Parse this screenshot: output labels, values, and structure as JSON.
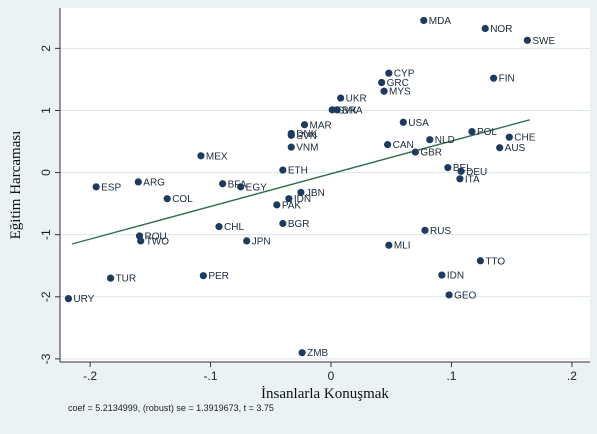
{
  "chart_data": {
    "type": "scatter",
    "xlabel": "İnsanlarla Konuşmak",
    "ylabel": "Eğitim Harcaması",
    "xlim": [
      -0.225,
      0.215
    ],
    "ylim": [
      -3.05,
      2.65
    ],
    "xticks": [
      {
        "value": -0.2,
        "label": "-.2"
      },
      {
        "value": -0.1,
        "label": "-.1"
      },
      {
        "value": 0,
        "label": "0"
      },
      {
        "value": 0.1,
        "label": ".1"
      },
      {
        "value": 0.2,
        "label": ".2"
      }
    ],
    "yticks": [
      {
        "value": -3,
        "label": "-3"
      },
      {
        "value": -2,
        "label": "-2"
      },
      {
        "value": -1,
        "label": "-1"
      },
      {
        "value": 0,
        "label": "0"
      },
      {
        "value": 1,
        "label": "1"
      },
      {
        "value": 2,
        "label": "2"
      }
    ],
    "grid": true,
    "fit_line": {
      "x": [
        -0.215,
        0.165
      ],
      "y": [
        -1.15,
        0.85
      ]
    },
    "points": [
      {
        "label": "MDA",
        "x": 0.077,
        "y": 2.45
      },
      {
        "label": "NOR",
        "x": 0.128,
        "y": 2.32
      },
      {
        "label": "SWE",
        "x": 0.163,
        "y": 2.13
      },
      {
        "label": "FIN",
        "x": 0.135,
        "y": 1.52
      },
      {
        "label": "CYP",
        "x": 0.048,
        "y": 1.6
      },
      {
        "label": "GRC",
        "x": 0.042,
        "y": 1.45
      },
      {
        "label": "MYS",
        "x": 0.044,
        "y": 1.31
      },
      {
        "label": "UKR",
        "x": 0.008,
        "y": 1.2
      },
      {
        "label": "SVK",
        "x": 0.001,
        "y": 1.01
      },
      {
        "label": "BRA",
        "x": 0.005,
        "y": 1.01
      },
      {
        "label": "USA",
        "x": 0.06,
        "y": 0.81
      },
      {
        "label": "MAR",
        "x": -0.022,
        "y": 0.77
      },
      {
        "label": "DNK",
        "x": -0.033,
        "y": 0.63
      },
      {
        "label": "SVN",
        "x": -0.033,
        "y": 0.6
      },
      {
        "label": "POL",
        "x": 0.117,
        "y": 0.66
      },
      {
        "label": "CHE",
        "x": 0.148,
        "y": 0.57
      },
      {
        "label": "NLD",
        "x": 0.082,
        "y": 0.53
      },
      {
        "label": "AUS",
        "x": 0.14,
        "y": 0.4
      },
      {
        "label": "CAN",
        "x": 0.047,
        "y": 0.45
      },
      {
        "label": "GBR",
        "x": 0.07,
        "y": 0.33
      },
      {
        "label": "VNM",
        "x": -0.033,
        "y": 0.41
      },
      {
        "label": "MEX",
        "x": -0.108,
        "y": 0.27
      },
      {
        "label": "ETH",
        "x": -0.04,
        "y": 0.04
      },
      {
        "label": "BEL",
        "x": 0.097,
        "y": 0.08
      },
      {
        "label": "DEU",
        "x": 0.108,
        "y": 0.02
      },
      {
        "label": "ITA",
        "x": 0.107,
        "y": -0.1
      },
      {
        "label": "ARG",
        "x": -0.16,
        "y": -0.15
      },
      {
        "label": "ESP",
        "x": -0.195,
        "y": -0.23
      },
      {
        "label": "BFA",
        "x": -0.09,
        "y": -0.18
      },
      {
        "label": "EGY",
        "x": -0.075,
        "y": -0.23
      },
      {
        "label": "COL",
        "x": -0.136,
        "y": -0.42
      },
      {
        "label": "JBN",
        "x": -0.025,
        "y": -0.32
      },
      {
        "label": "IDN",
        "x": -0.035,
        "y": -0.42
      },
      {
        "label": "PAK",
        "x": -0.045,
        "y": -0.52
      },
      {
        "label": "CHL",
        "x": -0.093,
        "y": -0.87
      },
      {
        "label": "BGR",
        "x": -0.04,
        "y": -0.82
      },
      {
        "label": "RUS",
        "x": 0.078,
        "y": -0.93
      },
      {
        "label": "JPN",
        "x": -0.07,
        "y": -1.1
      },
      {
        "label": "ROU",
        "x": -0.159,
        "y": -1.02
      },
      {
        "label": "TWO",
        "x": -0.158,
        "y": -1.1
      },
      {
        "label": "MLI",
        "x": 0.048,
        "y": -1.17
      },
      {
        "label": "TTO",
        "x": 0.124,
        "y": -1.42
      },
      {
        "label": "IDN",
        "x": 0.092,
        "y": -1.65
      },
      {
        "label": "TUR",
        "x": -0.183,
        "y": -1.7
      },
      {
        "label": "PER",
        "x": -0.106,
        "y": -1.66
      },
      {
        "label": "GEO",
        "x": 0.098,
        "y": -1.97
      },
      {
        "label": "URY",
        "x": -0.218,
        "y": -2.03
      },
      {
        "label": "ZMB",
        "x": -0.024,
        "y": -2.9
      }
    ]
  },
  "note": "coef = 5.2134999, (robust) se = 1.3919673, t = 3.75",
  "colors": {
    "background": "#eaf2f3",
    "plot_background": "#ffffff",
    "marker": "#1f3a5f",
    "fit_line": "#2e6f4e",
    "grid": "#dbe5e8",
    "axis": "#333333"
  }
}
